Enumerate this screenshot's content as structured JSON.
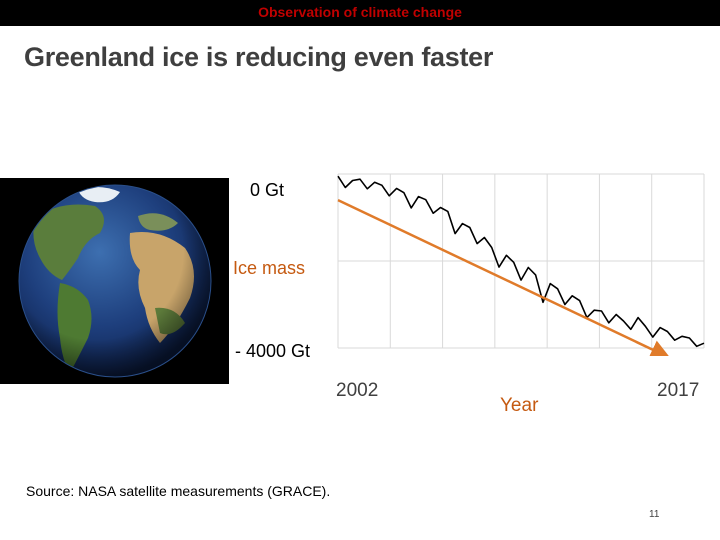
{
  "header": {
    "title": "Observation of climate change"
  },
  "slide": {
    "title": "Greenland ice is reducing even faster",
    "source": "Source: NASA satellite measurements (GRACE).",
    "page_number": "11"
  },
  "colors": {
    "header_text": "#c00000",
    "accent": "#c55a11",
    "trend_line": "#e07b2a",
    "data_line": "#000000"
  },
  "chart_data": {
    "type": "line",
    "y_top_label": "0 Gt",
    "y_axis_label": "Ice mass",
    "y_bottom_label": "- 4000 Gt",
    "x_start_label": "2002",
    "x_axis_label": "Year",
    "x_end_label": "2017",
    "xlim": [
      2002,
      2017
    ],
    "ylim": [
      -4000,
      0
    ],
    "grid": true,
    "series": [
      {
        "values_x": [
          2002.0,
          2002.3,
          2002.6,
          2002.9,
          2003.2,
          2003.5,
          2003.8,
          2004.1,
          2004.4,
          2004.7,
          2005.0,
          2005.3,
          2005.6,
          2005.9,
          2006.2,
          2006.5,
          2006.8,
          2007.1,
          2007.4,
          2007.7,
          2008.0,
          2008.3,
          2008.6,
          2008.9,
          2009.2,
          2009.5,
          2009.8,
          2010.1,
          2010.4,
          2010.7,
          2011.0,
          2011.3,
          2011.6,
          2011.9,
          2012.2,
          2012.5,
          2012.8,
          2013.1,
          2013.4,
          2013.7,
          2014.0,
          2014.3,
          2014.6,
          2014.9,
          2015.2,
          2015.5,
          2015.8,
          2016.1,
          2016.4,
          2016.7,
          2017.0
        ],
        "values_y": [
          -50,
          -310,
          -150,
          -120,
          -340,
          -190,
          -260,
          -500,
          -330,
          -430,
          -780,
          -520,
          -590,
          -900,
          -770,
          -860,
          -1370,
          -1140,
          -1230,
          -1600,
          -1460,
          -1690,
          -2140,
          -1870,
          -2030,
          -2440,
          -2150,
          -2320,
          -2950,
          -2520,
          -2640,
          -3000,
          -2800,
          -2910,
          -3300,
          -3130,
          -3150,
          -3420,
          -3230,
          -3380,
          -3570,
          -3300,
          -3500,
          -3750,
          -3530,
          -3620,
          -3820,
          -3730,
          -3770,
          -3960,
          -3890
        ]
      }
    ],
    "trend": {
      "x": [
        2002,
        2017
      ],
      "y": [
        -600,
        -4300
      ]
    }
  }
}
